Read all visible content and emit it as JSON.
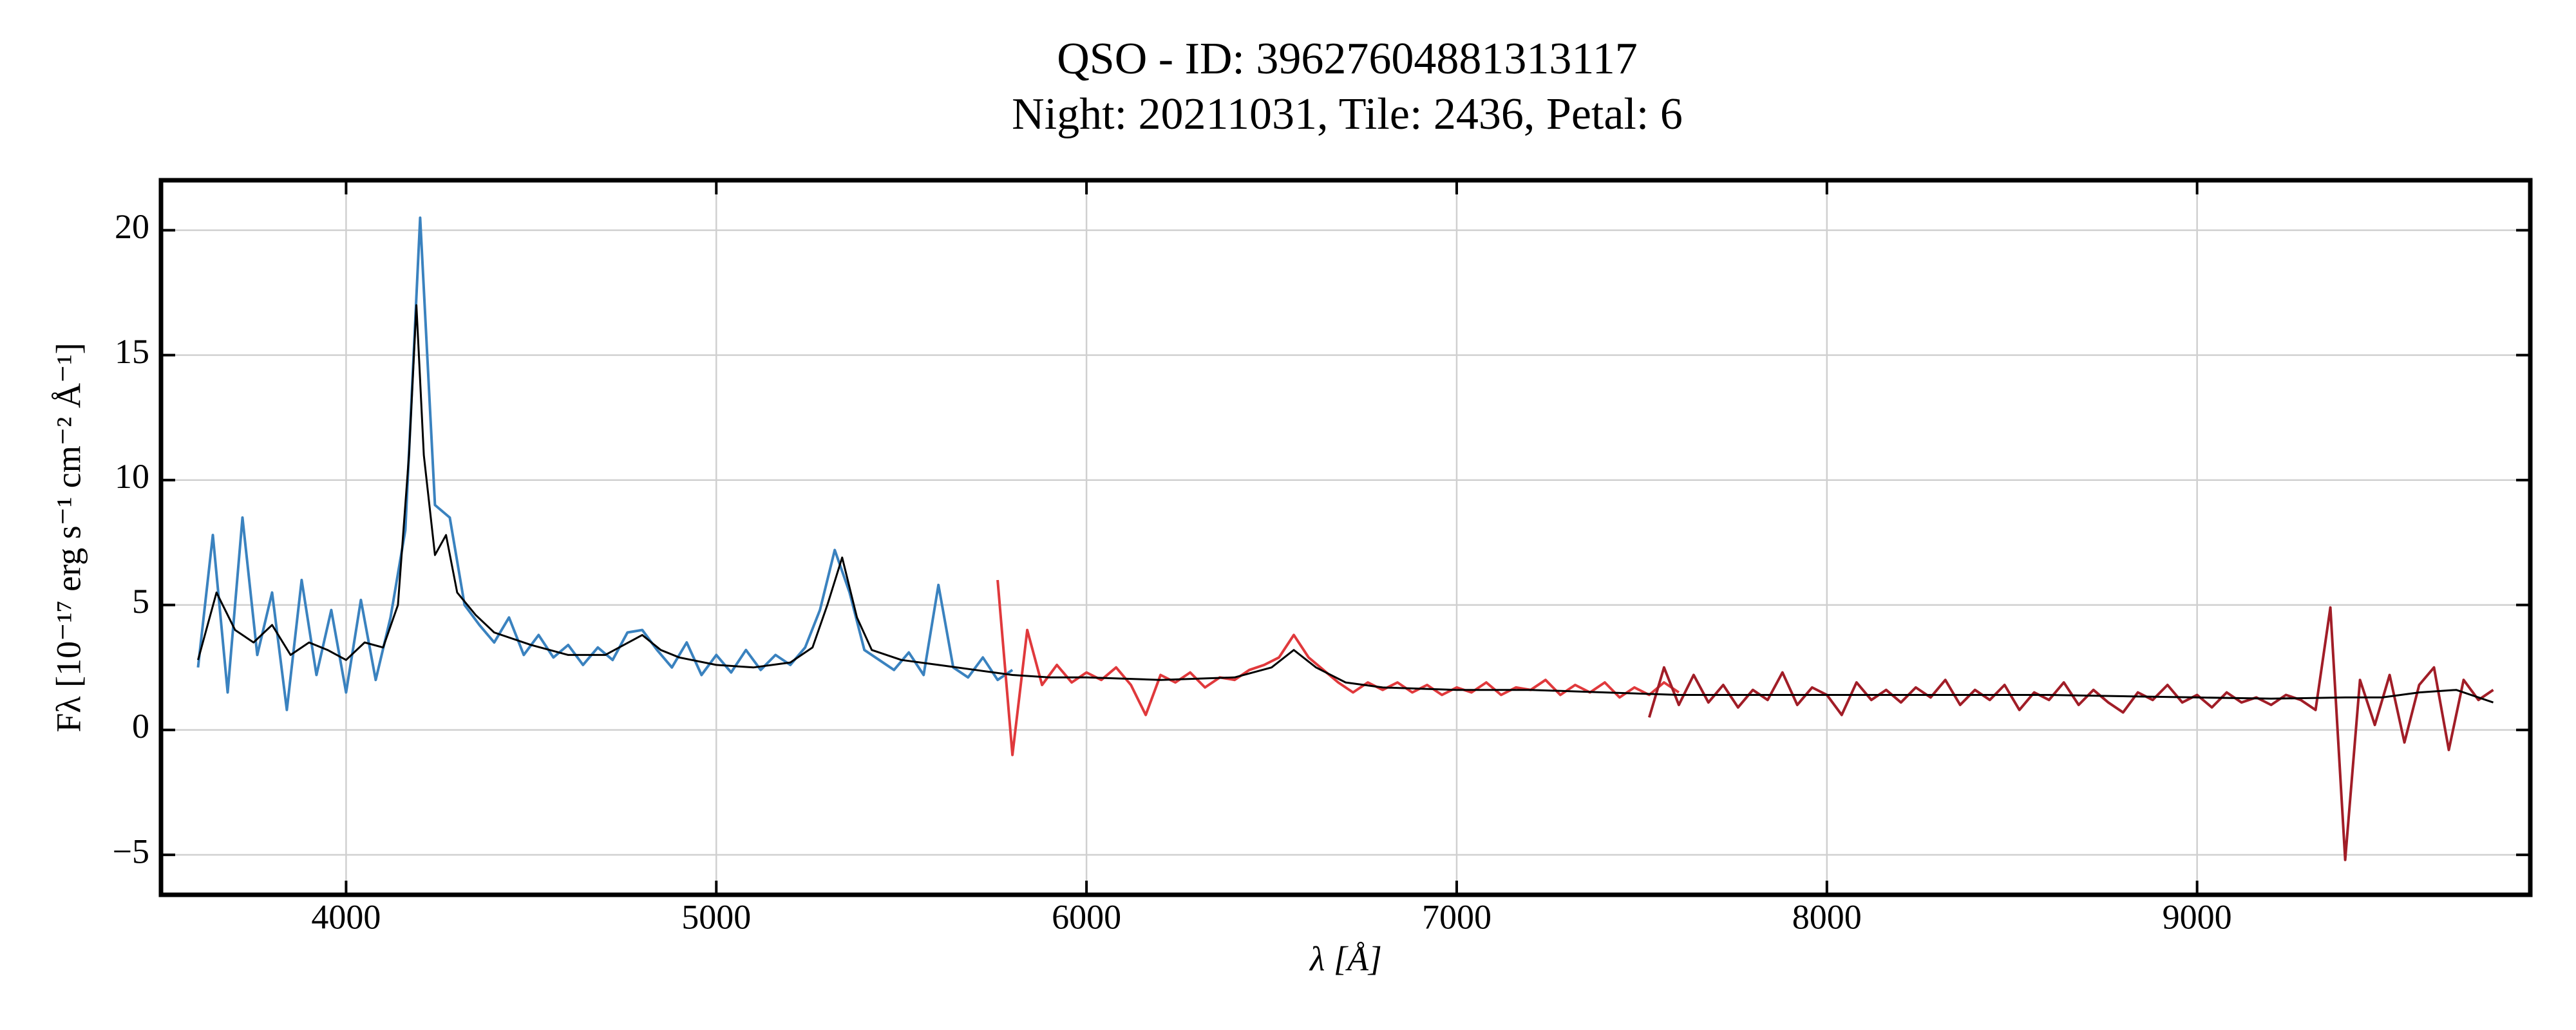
{
  "chart_data": {
    "type": "line",
    "title": "QSO - ID: 39627604881313117",
    "subtitle": "Night: 20211031, Tile: 2436, Petal: 6",
    "xlabel": "λ [Å]",
    "ylabel": "Fλ [10⁻¹⁷ erg s⁻¹ cm⁻² Å⁻¹]",
    "xlim": [
      3500,
      9900
    ],
    "ylim": [
      -6.6,
      22
    ],
    "xticks": [
      4000,
      5000,
      6000,
      7000,
      8000,
      9000
    ],
    "yticks": [
      {
        "value": -5,
        "label": "−5"
      },
      0,
      5,
      10,
      15,
      20
    ],
    "grid": true,
    "series": [
      {
        "color": "#3a82bf",
        "x": [
          3600,
          3640,
          3680,
          3720,
          3760,
          3800,
          3840,
          3880,
          3920,
          3960,
          4000,
          4040,
          4080,
          4120,
          4160,
          4200,
          4240,
          4280,
          4320,
          4360,
          4400,
          4440,
          4480,
          4520,
          4560,
          4600,
          4640,
          4680,
          4720,
          4760,
          4800,
          4840,
          4880,
          4920,
          4960,
          5000,
          5040,
          5080,
          5120,
          5160,
          5200,
          5240,
          5280,
          5320,
          5360,
          5400,
          5440,
          5480,
          5520,
          5560,
          5600,
          5640,
          5680,
          5720,
          5760,
          5800
        ],
        "values": [
          2.5,
          7.8,
          1.5,
          8.5,
          3.0,
          5.5,
          0.8,
          6.0,
          2.2,
          4.8,
          1.5,
          5.2,
          2.0,
          4.5,
          8.0,
          20.5,
          9.0,
          8.5,
          5.0,
          4.2,
          3.5,
          4.5,
          3.0,
          3.8,
          2.9,
          3.4,
          2.6,
          3.3,
          2.8,
          3.9,
          4.0,
          3.2,
          2.5,
          3.5,
          2.2,
          3.0,
          2.3,
          3.2,
          2.4,
          3.0,
          2.6,
          3.3,
          4.8,
          7.2,
          5.5,
          3.2,
          2.8,
          2.4,
          3.1,
          2.2,
          5.8,
          2.5,
          2.1,
          2.9,
          2.0,
          2.4
        ]
      },
      {
        "color": "#e0393c",
        "x": [
          5760,
          5800,
          5840,
          5880,
          5920,
          5960,
          6000,
          6040,
          6080,
          6120,
          6160,
          6200,
          6240,
          6280,
          6320,
          6360,
          6400,
          6440,
          6480,
          6520,
          6560,
          6600,
          6640,
          6680,
          6720,
          6760,
          6800,
          6840,
          6880,
          6920,
          6960,
          7000,
          7040,
          7080,
          7120,
          7160,
          7200,
          7240,
          7280,
          7320,
          7360,
          7400,
          7440,
          7480,
          7520,
          7560,
          7600
        ],
        "values": [
          6.0,
          -1.0,
          4.0,
          1.8,
          2.6,
          1.9,
          2.3,
          2.0,
          2.5,
          1.8,
          0.6,
          2.2,
          1.9,
          2.3,
          1.7,
          2.1,
          2.0,
          2.4,
          2.6,
          2.9,
          3.8,
          2.9,
          2.4,
          1.9,
          1.5,
          1.9,
          1.6,
          1.9,
          1.5,
          1.8,
          1.4,
          1.7,
          1.5,
          1.9,
          1.4,
          1.7,
          1.6,
          2.0,
          1.4,
          1.8,
          1.5,
          1.9,
          1.3,
          1.7,
          1.4,
          1.9,
          1.5
        ]
      },
      {
        "color": "#a11d27",
        "x": [
          7520,
          7560,
          7600,
          7640,
          7680,
          7720,
          7760,
          7800,
          7840,
          7880,
          7920,
          7960,
          8000,
          8040,
          8080,
          8120,
          8160,
          8200,
          8240,
          8280,
          8320,
          8360,
          8400,
          8440,
          8480,
          8520,
          8560,
          8600,
          8640,
          8680,
          8720,
          8760,
          8800,
          8840,
          8880,
          8920,
          8960,
          9000,
          9040,
          9080,
          9120,
          9160,
          9200,
          9240,
          9280,
          9320,
          9360,
          9400,
          9440,
          9480,
          9520,
          9560,
          9600,
          9640,
          9680,
          9720,
          9760,
          9800
        ],
        "values": [
          0.5,
          2.5,
          1.0,
          2.2,
          1.1,
          1.8,
          0.9,
          1.6,
          1.2,
          2.3,
          1.0,
          1.7,
          1.4,
          0.6,
          1.9,
          1.2,
          1.6,
          1.1,
          1.7,
          1.3,
          2.0,
          1.0,
          1.6,
          1.2,
          1.8,
          0.8,
          1.5,
          1.2,
          1.9,
          1.0,
          1.6,
          1.1,
          0.7,
          1.5,
          1.2,
          1.8,
          1.1,
          1.4,
          0.9,
          1.5,
          1.1,
          1.3,
          1.0,
          1.4,
          1.2,
          0.8,
          4.9,
          -5.2,
          2.0,
          0.2,
          2.2,
          -0.5,
          1.8,
          2.5,
          -0.8,
          2.0,
          1.2,
          1.6
        ]
      },
      {
        "color": "#000000",
        "x": [
          3600,
          3650,
          3700,
          3750,
          3800,
          3850,
          3900,
          3950,
          4000,
          4050,
          4100,
          4140,
          4170,
          4190,
          4210,
          4240,
          4270,
          4300,
          4350,
          4400,
          4500,
          4600,
          4700,
          4800,
          4850,
          4900,
          5000,
          5100,
          5200,
          5260,
          5300,
          5340,
          5380,
          5420,
          5500,
          5600,
          5700,
          5800,
          5900,
          6000,
          6200,
          6400,
          6500,
          6560,
          6620,
          6700,
          6800,
          7000,
          7200,
          7400,
          7600,
          7800,
          8000,
          8200,
          8400,
          8600,
          8800,
          9000,
          9200,
          9400,
          9500,
          9600,
          9700,
          9800
        ],
        "values": [
          2.8,
          5.5,
          4.0,
          3.5,
          4.2,
          3.0,
          3.5,
          3.2,
          2.8,
          3.5,
          3.3,
          5.0,
          11.0,
          17.0,
          11.0,
          7.0,
          7.8,
          5.5,
          4.6,
          3.9,
          3.4,
          3.0,
          3.0,
          3.8,
          3.2,
          2.9,
          2.6,
          2.5,
          2.7,
          3.3,
          5.0,
          6.9,
          4.5,
          3.2,
          2.8,
          2.6,
          2.4,
          2.2,
          2.1,
          2.1,
          2.0,
          2.1,
          2.5,
          3.2,
          2.5,
          1.9,
          1.7,
          1.6,
          1.6,
          1.5,
          1.4,
          1.4,
          1.4,
          1.4,
          1.4,
          1.4,
          1.35,
          1.3,
          1.25,
          1.3,
          1.3,
          1.5,
          1.6,
          1.1
        ]
      }
    ]
  }
}
